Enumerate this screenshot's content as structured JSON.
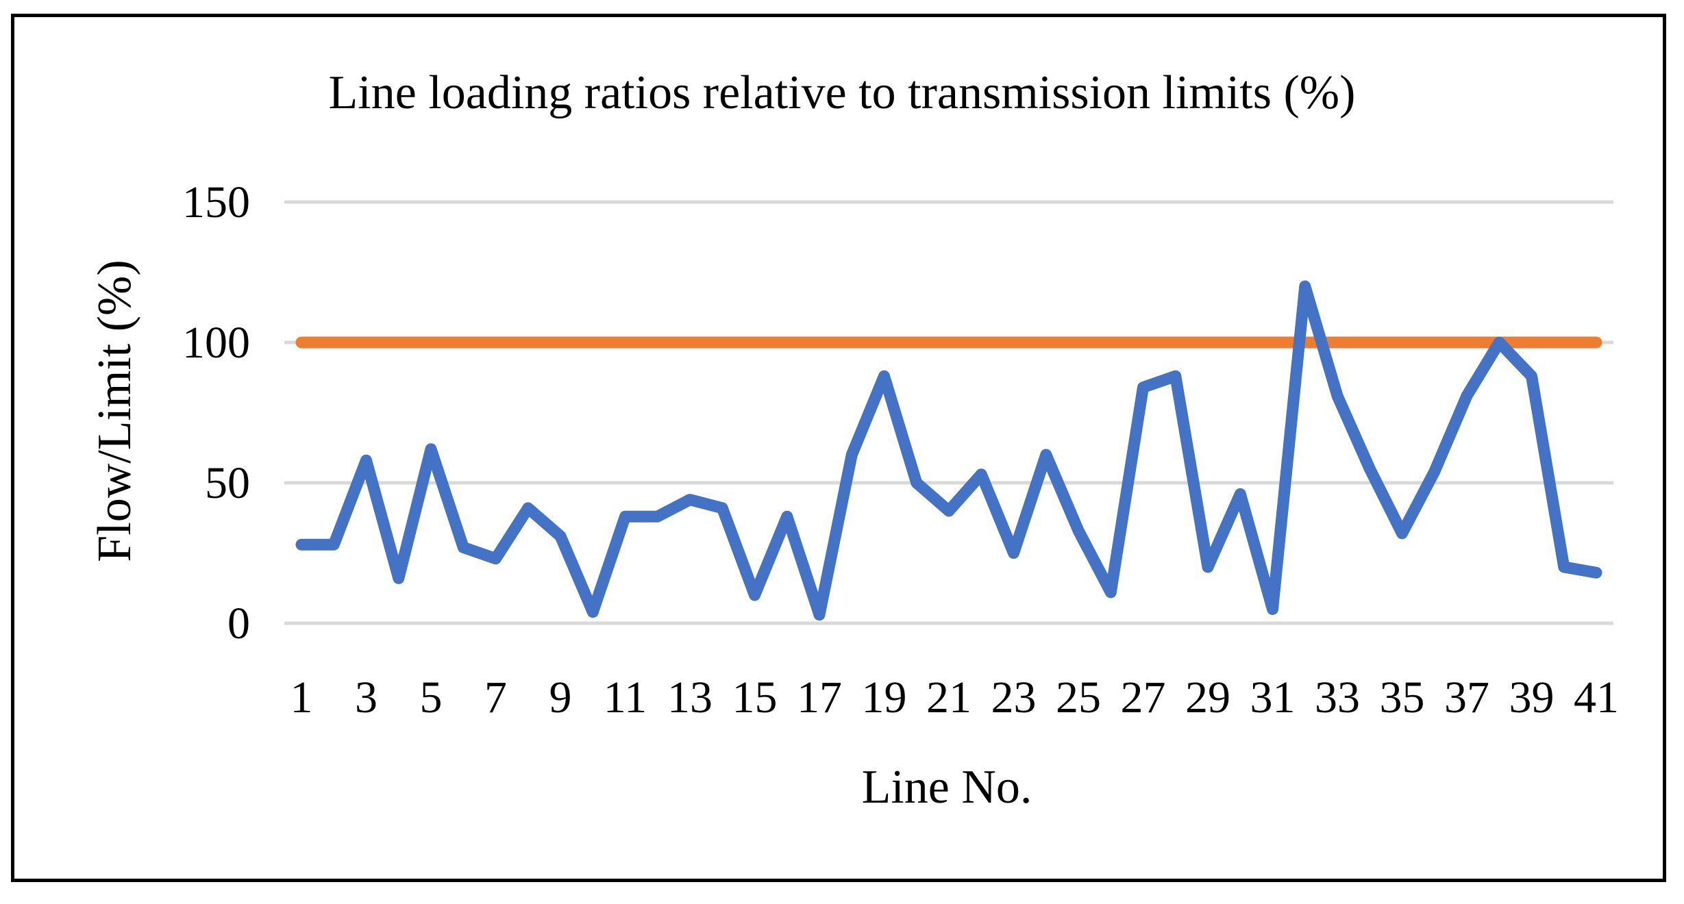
{
  "chart_data": {
    "type": "line",
    "title": "Line loading ratios relative to transmission limits (%)",
    "xlabel": "Line No.",
    "ylabel": "Flow/Limit (%)",
    "ylim": [
      0,
      150
    ],
    "yticks": [
      "0",
      "50",
      "100",
      "150"
    ],
    "x": [
      1,
      2,
      3,
      4,
      5,
      6,
      7,
      8,
      9,
      10,
      11,
      12,
      13,
      14,
      15,
      16,
      17,
      18,
      19,
      20,
      21,
      22,
      23,
      24,
      25,
      26,
      27,
      28,
      29,
      30,
      31,
      32,
      33,
      34,
      35,
      36,
      37,
      38,
      39,
      40,
      41
    ],
    "xtick_labels": [
      "1",
      "3",
      "5",
      "7",
      "9",
      "11",
      "13",
      "15",
      "17",
      "19",
      "21",
      "23",
      "25",
      "27",
      "29",
      "31",
      "33",
      "35",
      "37",
      "39",
      "41"
    ],
    "grid": true,
    "legend": "none",
    "series": [
      {
        "color": "#4472C4",
        "values": [
          28,
          28,
          58,
          16,
          62,
          27,
          23,
          41,
          31,
          4,
          38,
          38,
          44,
          41,
          10,
          38,
          3,
          60,
          88,
          50,
          40,
          53,
          25,
          60,
          33,
          11,
          84,
          88,
          20,
          46,
          5,
          120,
          81,
          55,
          32,
          54,
          81,
          100,
          88,
          20,
          18
        ]
      },
      {
        "color": "#ED7D31",
        "values": [
          100,
          100,
          100,
          100,
          100,
          100,
          100,
          100,
          100,
          100,
          100,
          100,
          100,
          100,
          100,
          100,
          100,
          100,
          100,
          100,
          100,
          100,
          100,
          100,
          100,
          100,
          100,
          100,
          100,
          100,
          100,
          100,
          100,
          100,
          100,
          100,
          100,
          100,
          100,
          100,
          100
        ]
      }
    ],
    "gridline_color": "#D9D9D9"
  }
}
